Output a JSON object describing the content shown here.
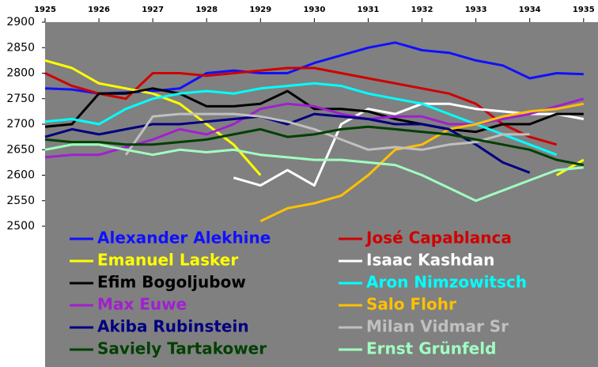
{
  "chart_data": {
    "type": "line",
    "x": [
      1925,
      1925.5,
      1926,
      1926.5,
      1927,
      1927.5,
      1928,
      1928.5,
      1929,
      1929.5,
      1930,
      1930.5,
      1931,
      1931.5,
      1932,
      1932.5,
      1933,
      1933.5,
      1934,
      1934.5,
      1935
    ],
    "xlim": [
      1925,
      1935.15
    ],
    "xticks": [
      1925,
      1926,
      1927,
      1928,
      1929,
      1930,
      1931,
      1932,
      1933,
      1934,
      1935
    ],
    "ylim": [
      2500,
      2900
    ],
    "yticks": [
      2500,
      2550,
      2600,
      2650,
      2700,
      2750,
      2800,
      2850,
      2900
    ],
    "legend": "bottom",
    "series": [
      {
        "name": "Alexander Alekhine",
        "color": "#1010ff",
        "values": [
          2770,
          2768,
          2760,
          2762,
          2765,
          2770,
          2800,
          2805,
          2800,
          2800,
          2820,
          2835,
          2850,
          2860,
          2845,
          2840,
          2825,
          2815,
          2790,
          2800,
          2798
        ]
      },
      {
        "name": "José Capablanca",
        "color": "#d00000",
        "values": [
          2800,
          2775,
          2760,
          2750,
          2800,
          2800,
          2795,
          2800,
          2805,
          2810,
          2810,
          2800,
          2790,
          2780,
          2770,
          2760,
          2740,
          2700,
          2675,
          2660,
          null
        ]
      },
      {
        "name": "Emanuel Lasker",
        "color": "#ffff00",
        "values": [
          2825,
          2810,
          2780,
          2770,
          2760,
          2740,
          2700,
          2660,
          2600,
          null,
          null,
          null,
          null,
          null,
          null,
          null,
          null,
          null,
          null,
          2600,
          2630
        ]
      },
      {
        "name": "Isaac Kashdan",
        "color": "#ffffff",
        "values": [
          null,
          null,
          null,
          null,
          null,
          null,
          null,
          2595,
          2580,
          2610,
          2580,
          2700,
          2730,
          2720,
          2740,
          2740,
          2730,
          2725,
          2720,
          2720,
          2710
        ]
      },
      {
        "name": "Efim Bogoljubow",
        "color": "#000000",
        "values": [
          2695,
          2700,
          2760,
          2760,
          2770,
          2760,
          2735,
          2735,
          2740,
          2765,
          2730,
          2730,
          2725,
          2710,
          2700,
          2690,
          2685,
          2700,
          2700,
          2720,
          2720
        ]
      },
      {
        "name": "Aron Nimzowitsch",
        "color": "#00ffff",
        "values": [
          2705,
          2710,
          2700,
          2730,
          2750,
          2760,
          2765,
          2760,
          2770,
          2775,
          2780,
          2775,
          2760,
          2750,
          2740,
          2720,
          2700,
          2680,
          2660,
          2640,
          null
        ]
      },
      {
        "name": "Max Euwe",
        "color": "#a020d0",
        "values": [
          2635,
          2640,
          2640,
          2655,
          2670,
          2690,
          2680,
          2700,
          2730,
          2740,
          2735,
          2720,
          2710,
          2715,
          2715,
          2700,
          2700,
          2710,
          2720,
          2735,
          2750
        ]
      },
      {
        "name": "Salo Flohr",
        "color": "#ffc000",
        "values": [
          null,
          null,
          null,
          null,
          null,
          null,
          null,
          null,
          2510,
          2535,
          2545,
          2560,
          2600,
          2650,
          2660,
          2690,
          2700,
          2715,
          2725,
          2730,
          2740
        ]
      },
      {
        "name": "Akiba Rubinstein",
        "color": "#000080",
        "values": [
          2675,
          2690,
          2680,
          2690,
          2700,
          2700,
          2705,
          2710,
          2715,
          2700,
          2720,
          2715,
          2710,
          2700,
          2700,
          2690,
          2660,
          2625,
          2605,
          null,
          null
        ]
      },
      {
        "name": "Milan Vidmar Sr",
        "color": "#c0c0c0",
        "values": [
          null,
          null,
          null,
          2640,
          2715,
          2720,
          2720,
          2720,
          2715,
          2705,
          2690,
          2670,
          2650,
          2655,
          2650,
          2660,
          2665,
          2680,
          2680,
          null,
          null
        ]
      },
      {
        "name": "Saviely Tartakower",
        "color": "#004000",
        "values": [
          2670,
          2665,
          2665,
          2660,
          2660,
          2665,
          2670,
          2680,
          2690,
          2675,
          2680,
          2690,
          2695,
          2690,
          2685,
          2680,
          2670,
          2660,
          2650,
          2630,
          2620
        ]
      },
      {
        "name": "Ernst Grünfeld",
        "color": "#a0ffc0",
        "values": [
          2650,
          2660,
          2660,
          2650,
          2640,
          2650,
          2645,
          2650,
          2640,
          2635,
          2630,
          2630,
          2625,
          2620,
          2600,
          2575,
          2550,
          2570,
          2590,
          2610,
          2615
        ]
      }
    ]
  }
}
